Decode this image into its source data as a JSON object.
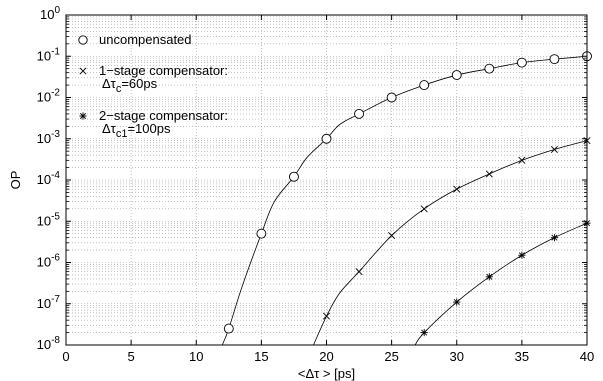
{
  "chart_data": {
    "type": "line",
    "xlabel": "<Δτ > [ps]",
    "ylabel": "OP",
    "xlim": [
      0,
      40
    ],
    "ylim": [
      1e-08,
      1
    ],
    "yscale": "log",
    "grid": true,
    "legend_position": "top-left",
    "x_ticks": [
      0,
      5,
      10,
      15,
      20,
      25,
      30,
      35,
      40
    ],
    "y_ticks": [
      {
        "value": 1e-08,
        "base": "10",
        "exp": "-8"
      },
      {
        "value": 1e-07,
        "base": "10",
        "exp": "-7"
      },
      {
        "value": 1e-06,
        "base": "10",
        "exp": "-6"
      },
      {
        "value": 1e-05,
        "base": "10",
        "exp": "-5"
      },
      {
        "value": 0.0001,
        "base": "10",
        "exp": "-4"
      },
      {
        "value": 0.001,
        "base": "10",
        "exp": "-3"
      },
      {
        "value": 0.01,
        "base": "10",
        "exp": "-2"
      },
      {
        "value": 0.1,
        "base": "10",
        "exp": "-1"
      },
      {
        "value": 1,
        "base": "10",
        "exp": "0"
      }
    ],
    "legend": [
      {
        "marker": "circle",
        "lines": [
          "uncompensated"
        ]
      },
      {
        "marker": "x",
        "lines": [
          "1−stage compensator:",
          "Δτc=60ps"
        ]
      },
      {
        "marker": "star",
        "lines": [
          "2−stage compensator:",
          "Δτc1=100ps"
        ]
      }
    ],
    "series": [
      {
        "marker": "circle",
        "x": [
          12.5,
          15,
          17.5,
          20,
          22.5,
          25,
          27.5,
          30,
          32.5,
          35,
          37.5,
          40
        ],
        "y": [
          2.5e-08,
          5e-06,
          0.00012,
          0.001,
          0.004,
          0.01,
          0.02,
          0.035,
          0.05,
          0.07,
          0.085,
          0.1
        ]
      },
      {
        "marker": "x",
        "x": [
          20,
          22.5,
          25,
          27.5,
          30,
          32.5,
          35,
          37.5,
          40
        ],
        "y": [
          5e-08,
          6e-07,
          4.5e-06,
          2e-05,
          6e-05,
          0.00014,
          0.0003,
          0.00055,
          0.0009
        ]
      },
      {
        "marker": "star",
        "x": [
          27.5,
          30,
          32.5,
          35,
          37.5,
          40
        ],
        "y": [
          2e-08,
          1.1e-07,
          4.5e-07,
          1.5e-06,
          4e-06,
          9e-06
        ]
      }
    ],
    "curves": [
      {
        "x": [
          12.0,
          12.5,
          13.5,
          15,
          16,
          17.5,
          18.5,
          20,
          21,
          22.5,
          25,
          27.5,
          30,
          32.5,
          35,
          37.5,
          40
        ],
        "y": [
          1e-08,
          2.5e-08,
          2.5e-07,
          5e-06,
          3e-05,
          0.00012,
          0.00035,
          0.001,
          0.0022,
          0.004,
          0.01,
          0.02,
          0.035,
          0.05,
          0.07,
          0.085,
          0.1
        ]
      },
      {
        "x": [
          19.0,
          20,
          21,
          22.5,
          25,
          27.5,
          30,
          32.5,
          35,
          37.5,
          40
        ],
        "y": [
          1e-08,
          5e-08,
          1.8e-07,
          6e-07,
          4.5e-06,
          2e-05,
          6e-05,
          0.00014,
          0.0003,
          0.00055,
          0.0009
        ]
      },
      {
        "x": [
          26.8,
          27.5,
          30,
          32.5,
          35,
          37.5,
          40
        ],
        "y": [
          1e-08,
          2e-08,
          1.1e-07,
          4.5e-07,
          1.5e-06,
          4e-06,
          9e-06
        ]
      }
    ]
  }
}
